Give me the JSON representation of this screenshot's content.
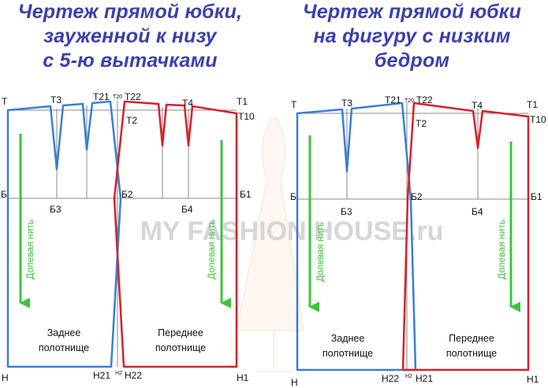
{
  "titles": {
    "left": [
      "Чертеж прямой юбки,",
      "зауженной к низу",
      "с 5-ю вытачками"
    ],
    "right": [
      "Чертеж прямой юбки",
      "на фигуру с низким",
      "бедром"
    ]
  },
  "watermark": "MY FASHION HOUSE.ru",
  "colors": {
    "title": "#3a3fb0",
    "back_panel": "#3a7fd5",
    "front_panel": "#d8202a",
    "grain_arrow": "#3cc43c",
    "guide_lines": "#888888"
  },
  "left_diagram": {
    "points": {
      "T": "Т",
      "T3": "Т3",
      "T21": "Т21",
      "T20": "Т20",
      "T22": "Т22",
      "T4": "Т4",
      "T1": "Т1",
      "T10": "Т10",
      "T2": "Т2",
      "B": "Б",
      "B3": "Б3",
      "B2": "Б2",
      "B4": "Б4",
      "B1": "Б1",
      "H": "Н",
      "H21": "Н21",
      "H2": "Н2",
      "H22": "Н22",
      "H1": "Н1"
    },
    "grain_label": "Долевая нить",
    "back_panel_label": [
      "Заднее",
      "полотнище"
    ],
    "front_panel_label": [
      "Переднее",
      "полотнище"
    ]
  },
  "right_diagram": {
    "points": {
      "T": "Т",
      "T3": "Т3",
      "T21": "Т21",
      "T20": "Т20",
      "T22": "Т22",
      "T4": "Т4",
      "T1": "Т1",
      "T10": "Т10",
      "T2": "Т2",
      "B": "Б",
      "B3": "Б3",
      "B2": "Б2",
      "B4": "Б4",
      "B1": "Б1",
      "H": "Н",
      "H22": "Н22",
      "H2": "Н2",
      "H21": "Н21",
      "H1": "Н1"
    },
    "grain_label": "Долевая нить",
    "back_panel_label": [
      "Заднее",
      "полотнище"
    ],
    "front_panel_label": [
      "Переднее",
      "полотнище"
    ]
  }
}
